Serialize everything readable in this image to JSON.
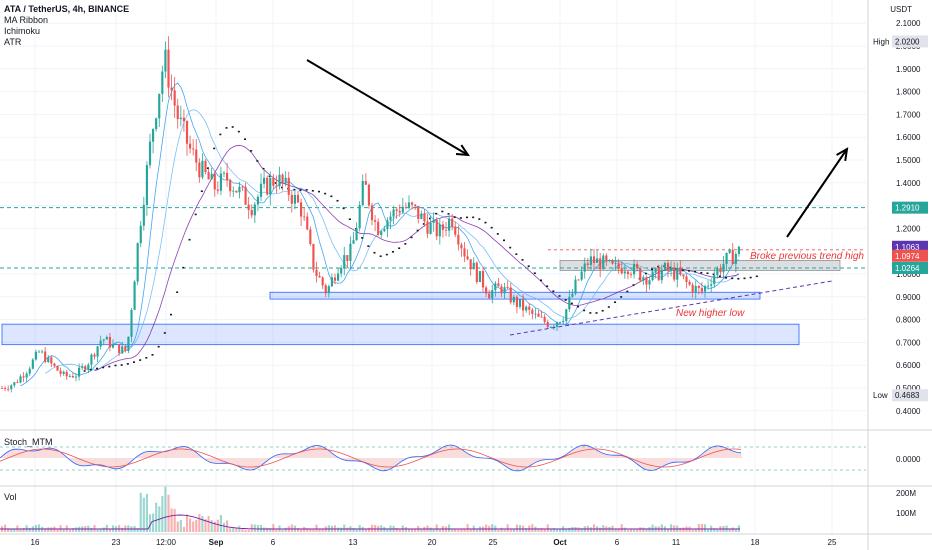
{
  "legend": {
    "title": "ATA / TetherUS, 4h, BINANCE",
    "indicators": [
      "MA Ribbon",
      "Ichimoku",
      "ATR"
    ]
  },
  "panels": {
    "stoch_label": "Stoch_MTM",
    "vol_label": "Vol"
  },
  "price_axis": {
    "currency": "USDT",
    "ticks": [
      "2.1000",
      "2.0000",
      "1.9000",
      "1.8000",
      "1.7000",
      "1.6000",
      "1.5000",
      "1.4000",
      "1.3000",
      "1.2000",
      "1.0000",
      "0.9000",
      "0.8000",
      "0.7000",
      "0.6000",
      "0.5000",
      "0.4000"
    ],
    "high_label": "High",
    "high_value": "2.0200",
    "low_label": "Low",
    "low_value": "0.4683",
    "tags": [
      {
        "value": "1.2910",
        "color": "#26a69a"
      },
      {
        "value": "1.1063",
        "color": "#5e35b1"
      },
      {
        "value": "1.0974",
        "color": "#ef5350"
      },
      {
        "value": "1.0264",
        "color": "#26a69a"
      }
    ]
  },
  "stoch_axis": {
    "ticks": [
      "0.0000"
    ]
  },
  "vol_axis": {
    "ticks": [
      "200M",
      "100M"
    ]
  },
  "time_axis": {
    "labels": [
      "16",
      "23",
      "12:00",
      "Sep",
      "6",
      "13",
      "20",
      "25",
      "Oct",
      "6",
      "11",
      "18",
      "25"
    ]
  },
  "annotations": {
    "trend_high": "Broke previous trend high",
    "higher_low": "New higher low"
  },
  "colors": {
    "up": "#26a69a",
    "down": "#ef5350",
    "zone": "#2962ff",
    "ma": "#2196f3",
    "ma2": "#7b1fa2"
  },
  "chart_data": {
    "type": "candlestick",
    "symbol": "ATA / TetherUS",
    "interval": "4h",
    "exchange": "BINANCE",
    "ylim": [
      0.4,
      2.1
    ],
    "key_levels": [
      1.291,
      1.0264
    ],
    "shown_high": 2.02,
    "shown_low": 0.4683,
    "last_close": 1.0974,
    "series": [
      {
        "name": "close_path",
        "values": [
          0.5,
          0.52,
          0.58,
          0.66,
          0.6,
          0.55,
          0.56,
          0.62,
          0.72,
          0.68,
          0.66,
          1.2,
          1.62,
          1.95,
          1.7,
          1.55,
          1.45,
          1.38,
          1.42,
          1.36,
          1.3,
          1.38,
          1.42,
          1.36,
          1.28,
          1.02,
          0.92,
          1.05,
          1.1,
          1.4,
          1.2,
          1.25,
          1.3,
          1.28,
          1.22,
          1.18,
          1.25,
          1.1,
          1.0,
          0.92,
          0.94,
          0.88,
          0.84,
          0.8,
          0.78,
          0.82,
          0.96,
          1.06,
          1.05,
          1.02,
          1.04,
          1.0,
          0.98,
          1.02,
          1.0,
          0.95,
          0.92,
          1.0,
          1.06,
          1.1
        ]
      }
    ]
  }
}
